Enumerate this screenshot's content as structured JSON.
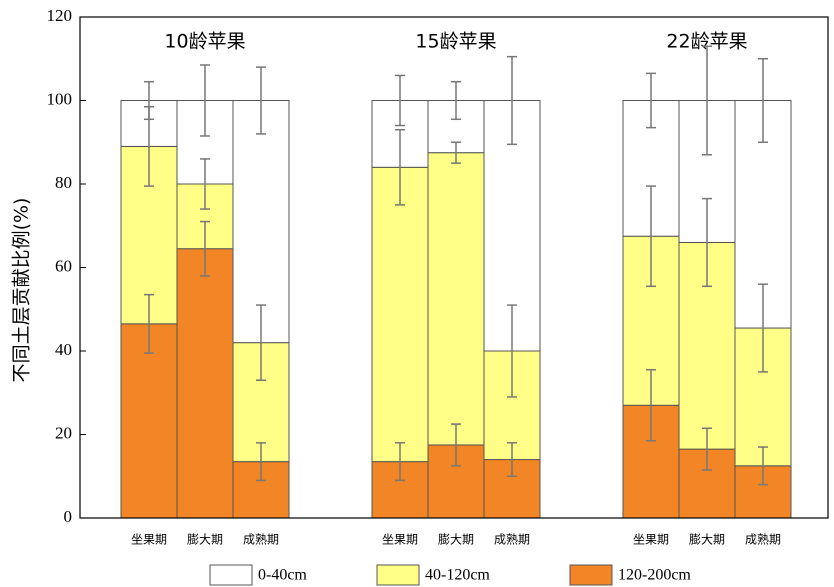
{
  "chart_data": {
    "type": "stacked_bar",
    "y_label": "不同土层贡献比例(%)",
    "groups": [
      {
        "name": "10龄苹果",
        "categories": [
          "坐果期",
          "膨大期",
          "成熟期"
        ]
      },
      {
        "name": "15龄苹果",
        "categories": [
          "坐果期",
          "膨大期",
          "成熟期"
        ]
      },
      {
        "name": "22龄苹果",
        "categories": [
          "坐果期",
          "膨大期",
          "成熟期"
        ]
      }
    ],
    "series": [
      {
        "name": "0-40cm",
        "color": "#ffffff",
        "values": [
          11,
          20,
          58,
          16,
          12.5,
          60,
          32.5,
          34,
          54.5
        ],
        "errors": [
          4.5,
          8.5,
          8,
          6,
          4.5,
          10.5,
          6.5,
          13,
          10
        ]
      },
      {
        "name": "40-120cm",
        "color": "#ffff88",
        "values": [
          42.5,
          15.5,
          28.5,
          70.5,
          70,
          26,
          40.5,
          49.5,
          33
        ],
        "errors": [
          9.5,
          6,
          9,
          9,
          2.5,
          11,
          12,
          10.5,
          10.5
        ]
      },
      {
        "name": "120-200cm",
        "color": "#f28526",
        "values": [
          46.5,
          64.5,
          13.5,
          13.5,
          17.5,
          14,
          27,
          16.5,
          12.5
        ],
        "errors": [
          7,
          6.5,
          4.5,
          4.5,
          5,
          4,
          8.5,
          5,
          4.5
        ]
      }
    ],
    "ylim": [
      0,
      120
    ],
    "yticks": [
      0,
      20,
      40,
      60,
      80,
      100,
      120
    ]
  }
}
